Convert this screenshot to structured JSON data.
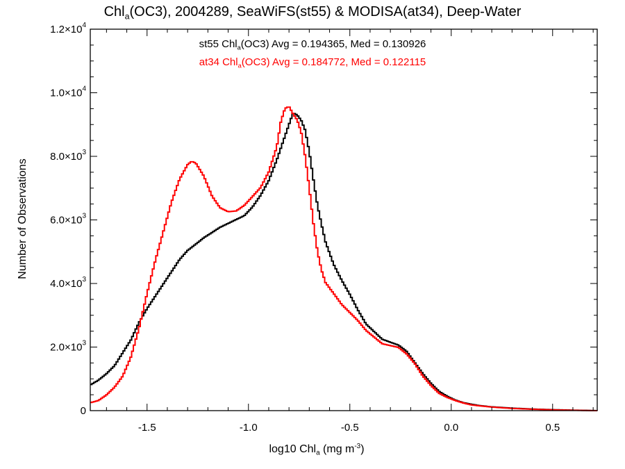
{
  "title": {
    "prefix": "Chl",
    "prefix_sub": "a",
    "rest": "(OC3), 2004289, SeaWiFS(st55) & MODISA(at34), Deep-Water"
  },
  "stats": {
    "black": {
      "label": "st55 Chl",
      "sub": "a",
      "rest": "(OC3) Avg = 0.194365, Med = 0.130926",
      "color": "#000000"
    },
    "red": {
      "label": "at34 Chl",
      "sub": "a",
      "rest": "(OC3) Avg = 0.184772, Med = 0.122115",
      "color": "#ff0000"
    }
  },
  "axes": {
    "ylabel": "Number of Observations",
    "xlabel_pre": "log10 Chl",
    "xlabel_sub": "a",
    "xlabel_unit_pre": " (mg m",
    "xlabel_unit_sup": "-3",
    "xlabel_unit_post": ")"
  },
  "chart_data": {
    "type": "line",
    "style": "step histogram",
    "xlim": [
      -1.78,
      0.72
    ],
    "ylim": [
      0,
      12000
    ],
    "xticks": [
      {
        "value": -1.5,
        "label": "-1.5"
      },
      {
        "value": -1.0,
        "label": "-1.0"
      },
      {
        "value": -0.5,
        "label": "-0.5"
      },
      {
        "value": 0.0,
        "label": "0.0"
      },
      {
        "value": 0.5,
        "label": "0.5"
      }
    ],
    "yticks": [
      {
        "value": 0,
        "mant": "0",
        "exp": ""
      },
      {
        "value": 2000,
        "mant": "2.0×10",
        "exp": "3"
      },
      {
        "value": 4000,
        "mant": "4.0×10",
        "exp": "3"
      },
      {
        "value": 6000,
        "mant": "6.0×10",
        "exp": "3"
      },
      {
        "value": 8000,
        "mant": "8.0×10",
        "exp": "3"
      },
      {
        "value": 10000,
        "mant": "1.0×10",
        "exp": "4"
      },
      {
        "value": 12000,
        "mant": "1.2×10",
        "exp": "4"
      }
    ],
    "series": [
      {
        "name": "st55",
        "color": "#000000",
        "points": [
          [
            -1.78,
            800
          ],
          [
            -1.74,
            950
          ],
          [
            -1.7,
            1150
          ],
          [
            -1.66,
            1400
          ],
          [
            -1.62,
            1800
          ],
          [
            -1.58,
            2200
          ],
          [
            -1.54,
            2750
          ],
          [
            -1.5,
            3200
          ],
          [
            -1.46,
            3600
          ],
          [
            -1.42,
            4000
          ],
          [
            -1.38,
            4400
          ],
          [
            -1.34,
            4800
          ],
          [
            -1.3,
            5100
          ],
          [
            -1.26,
            5300
          ],
          [
            -1.22,
            5500
          ],
          [
            -1.18,
            5650
          ],
          [
            -1.14,
            5800
          ],
          [
            -1.1,
            5900
          ],
          [
            -1.06,
            6000
          ],
          [
            -1.02,
            6100
          ],
          [
            -0.98,
            6350
          ],
          [
            -0.94,
            6700
          ],
          [
            -0.9,
            7150
          ],
          [
            -0.86,
            7800
          ],
          [
            -0.82,
            8550
          ],
          [
            -0.78,
            9300
          ],
          [
            -0.76,
            9250
          ],
          [
            -0.74,
            9100
          ],
          [
            -0.72,
            8800
          ],
          [
            -0.7,
            8150
          ],
          [
            -0.68,
            7300
          ],
          [
            -0.66,
            6500
          ],
          [
            -0.64,
            5900
          ],
          [
            -0.62,
            5350
          ],
          [
            -0.58,
            4650
          ],
          [
            -0.54,
            4150
          ],
          [
            -0.5,
            3700
          ],
          [
            -0.46,
            3200
          ],
          [
            -0.42,
            2750
          ],
          [
            -0.38,
            2500
          ],
          [
            -0.34,
            2250
          ],
          [
            -0.3,
            2150
          ],
          [
            -0.26,
            2050
          ],
          [
            -0.22,
            1850
          ],
          [
            -0.18,
            1500
          ],
          [
            -0.14,
            1150
          ],
          [
            -0.1,
            850
          ],
          [
            -0.06,
            600
          ],
          [
            -0.02,
            450
          ],
          [
            0.02,
            330
          ],
          [
            0.06,
            250
          ],
          [
            0.1,
            200
          ],
          [
            0.14,
            160
          ],
          [
            0.2,
            120
          ],
          [
            0.3,
            80
          ],
          [
            0.4,
            50
          ],
          [
            0.5,
            30
          ],
          [
            0.6,
            15
          ],
          [
            0.72,
            0
          ]
        ]
      },
      {
        "name": "at34",
        "color": "#ff0000",
        "points": [
          [
            -1.78,
            250
          ],
          [
            -1.74,
            320
          ],
          [
            -1.7,
            500
          ],
          [
            -1.66,
            750
          ],
          [
            -1.62,
            1100
          ],
          [
            -1.58,
            1700
          ],
          [
            -1.54,
            2600
          ],
          [
            -1.5,
            3700
          ],
          [
            -1.46,
            4700
          ],
          [
            -1.42,
            5600
          ],
          [
            -1.38,
            6500
          ],
          [
            -1.34,
            7200
          ],
          [
            -1.3,
            7650
          ],
          [
            -1.28,
            7750
          ],
          [
            -1.26,
            7700
          ],
          [
            -1.22,
            7300
          ],
          [
            -1.18,
            6700
          ],
          [
            -1.14,
            6350
          ],
          [
            -1.1,
            6250
          ],
          [
            -1.06,
            6300
          ],
          [
            -1.02,
            6500
          ],
          [
            -0.98,
            6800
          ],
          [
            -0.94,
            7100
          ],
          [
            -0.9,
            7600
          ],
          [
            -0.86,
            8400
          ],
          [
            -0.84,
            9200
          ],
          [
            -0.82,
            9600
          ],
          [
            -0.8,
            9650
          ],
          [
            -0.78,
            9400
          ],
          [
            -0.76,
            9200
          ],
          [
            -0.74,
            8800
          ],
          [
            -0.72,
            8000
          ],
          [
            -0.7,
            7000
          ],
          [
            -0.68,
            5900
          ],
          [
            -0.66,
            5000
          ],
          [
            -0.64,
            4400
          ],
          [
            -0.62,
            4000
          ],
          [
            -0.58,
            3650
          ],
          [
            -0.54,
            3300
          ],
          [
            -0.5,
            3050
          ],
          [
            -0.46,
            2800
          ],
          [
            -0.42,
            2500
          ],
          [
            -0.38,
            2300
          ],
          [
            -0.34,
            2100
          ],
          [
            -0.3,
            2050
          ],
          [
            -0.26,
            2000
          ],
          [
            -0.22,
            1800
          ],
          [
            -0.18,
            1500
          ],
          [
            -0.14,
            1100
          ],
          [
            -0.1,
            800
          ],
          [
            -0.06,
            550
          ],
          [
            -0.02,
            420
          ],
          [
            0.02,
            320
          ],
          [
            0.06,
            240
          ],
          [
            0.1,
            180
          ],
          [
            0.14,
            150
          ],
          [
            0.2,
            110
          ],
          [
            0.3,
            70
          ],
          [
            0.4,
            45
          ],
          [
            0.5,
            25
          ],
          [
            0.6,
            12
          ],
          [
            0.72,
            0
          ]
        ]
      }
    ]
  }
}
